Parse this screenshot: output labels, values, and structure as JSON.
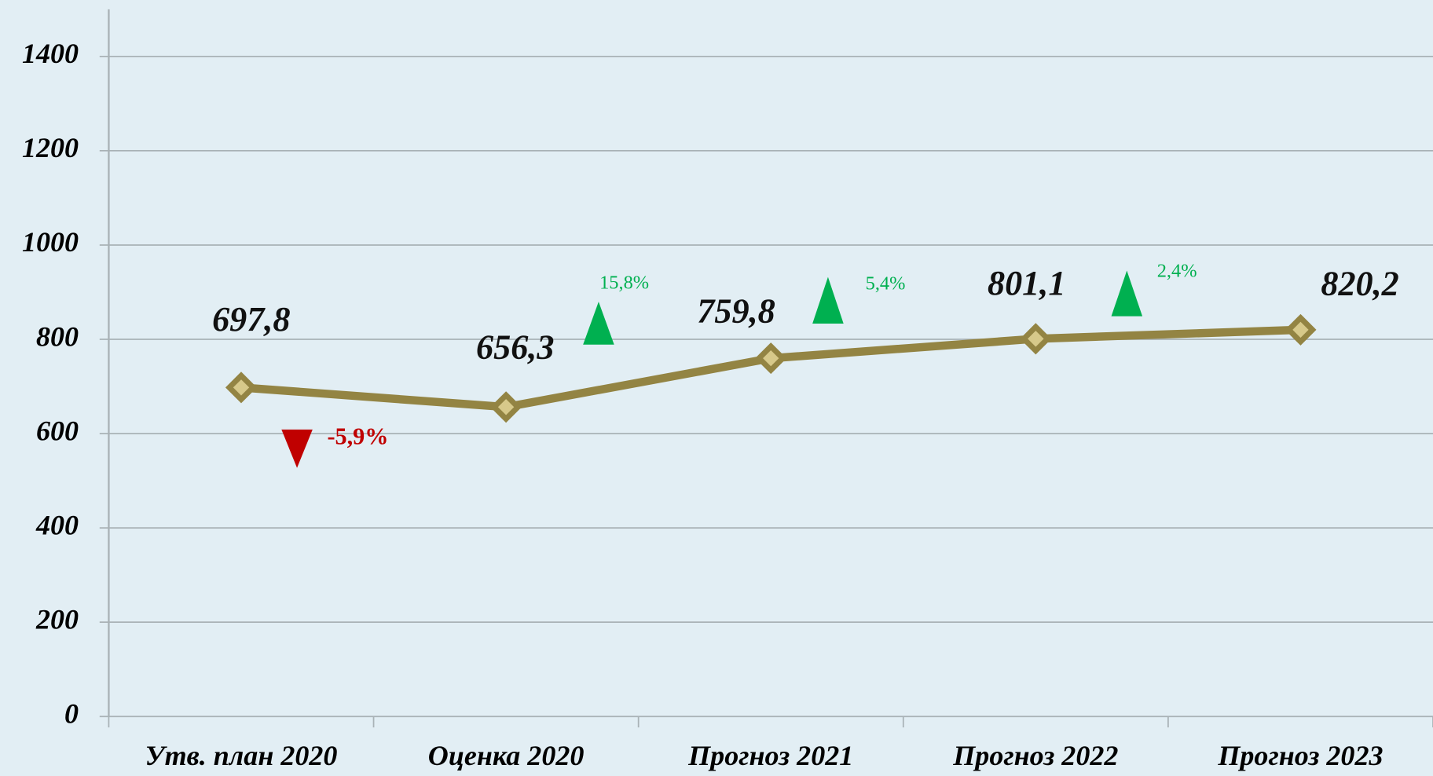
{
  "chart_data": {
    "type": "line",
    "categories": [
      "Утв. план 2020",
      "Оценка 2020",
      "Прогноз 2021",
      "Прогноз 2022",
      "Прогноз 2023"
    ],
    "series": [
      {
        "name": null,
        "color": "#938443",
        "values": [
          697.8,
          656.3,
          759.8,
          801.1,
          820.2
        ],
        "value_labels": [
          "697,8",
          "656,3",
          "759,8",
          "801,1",
          "820,2"
        ]
      }
    ],
    "ylim": [
      0,
      1500
    ],
    "yticks": [
      0,
      200,
      400,
      600,
      800,
      1000,
      1200,
      1400
    ],
    "grid": true,
    "annotations": [
      {
        "text": "-5,9%",
        "direction": "down",
        "color": "#c00000"
      },
      {
        "text": "15,8%",
        "direction": "up",
        "color": "#00b050"
      },
      {
        "text": "5,4%",
        "direction": "up",
        "color": "#00b050"
      },
      {
        "text": "2,4%",
        "direction": "up",
        "color": "#00b050"
      }
    ]
  }
}
